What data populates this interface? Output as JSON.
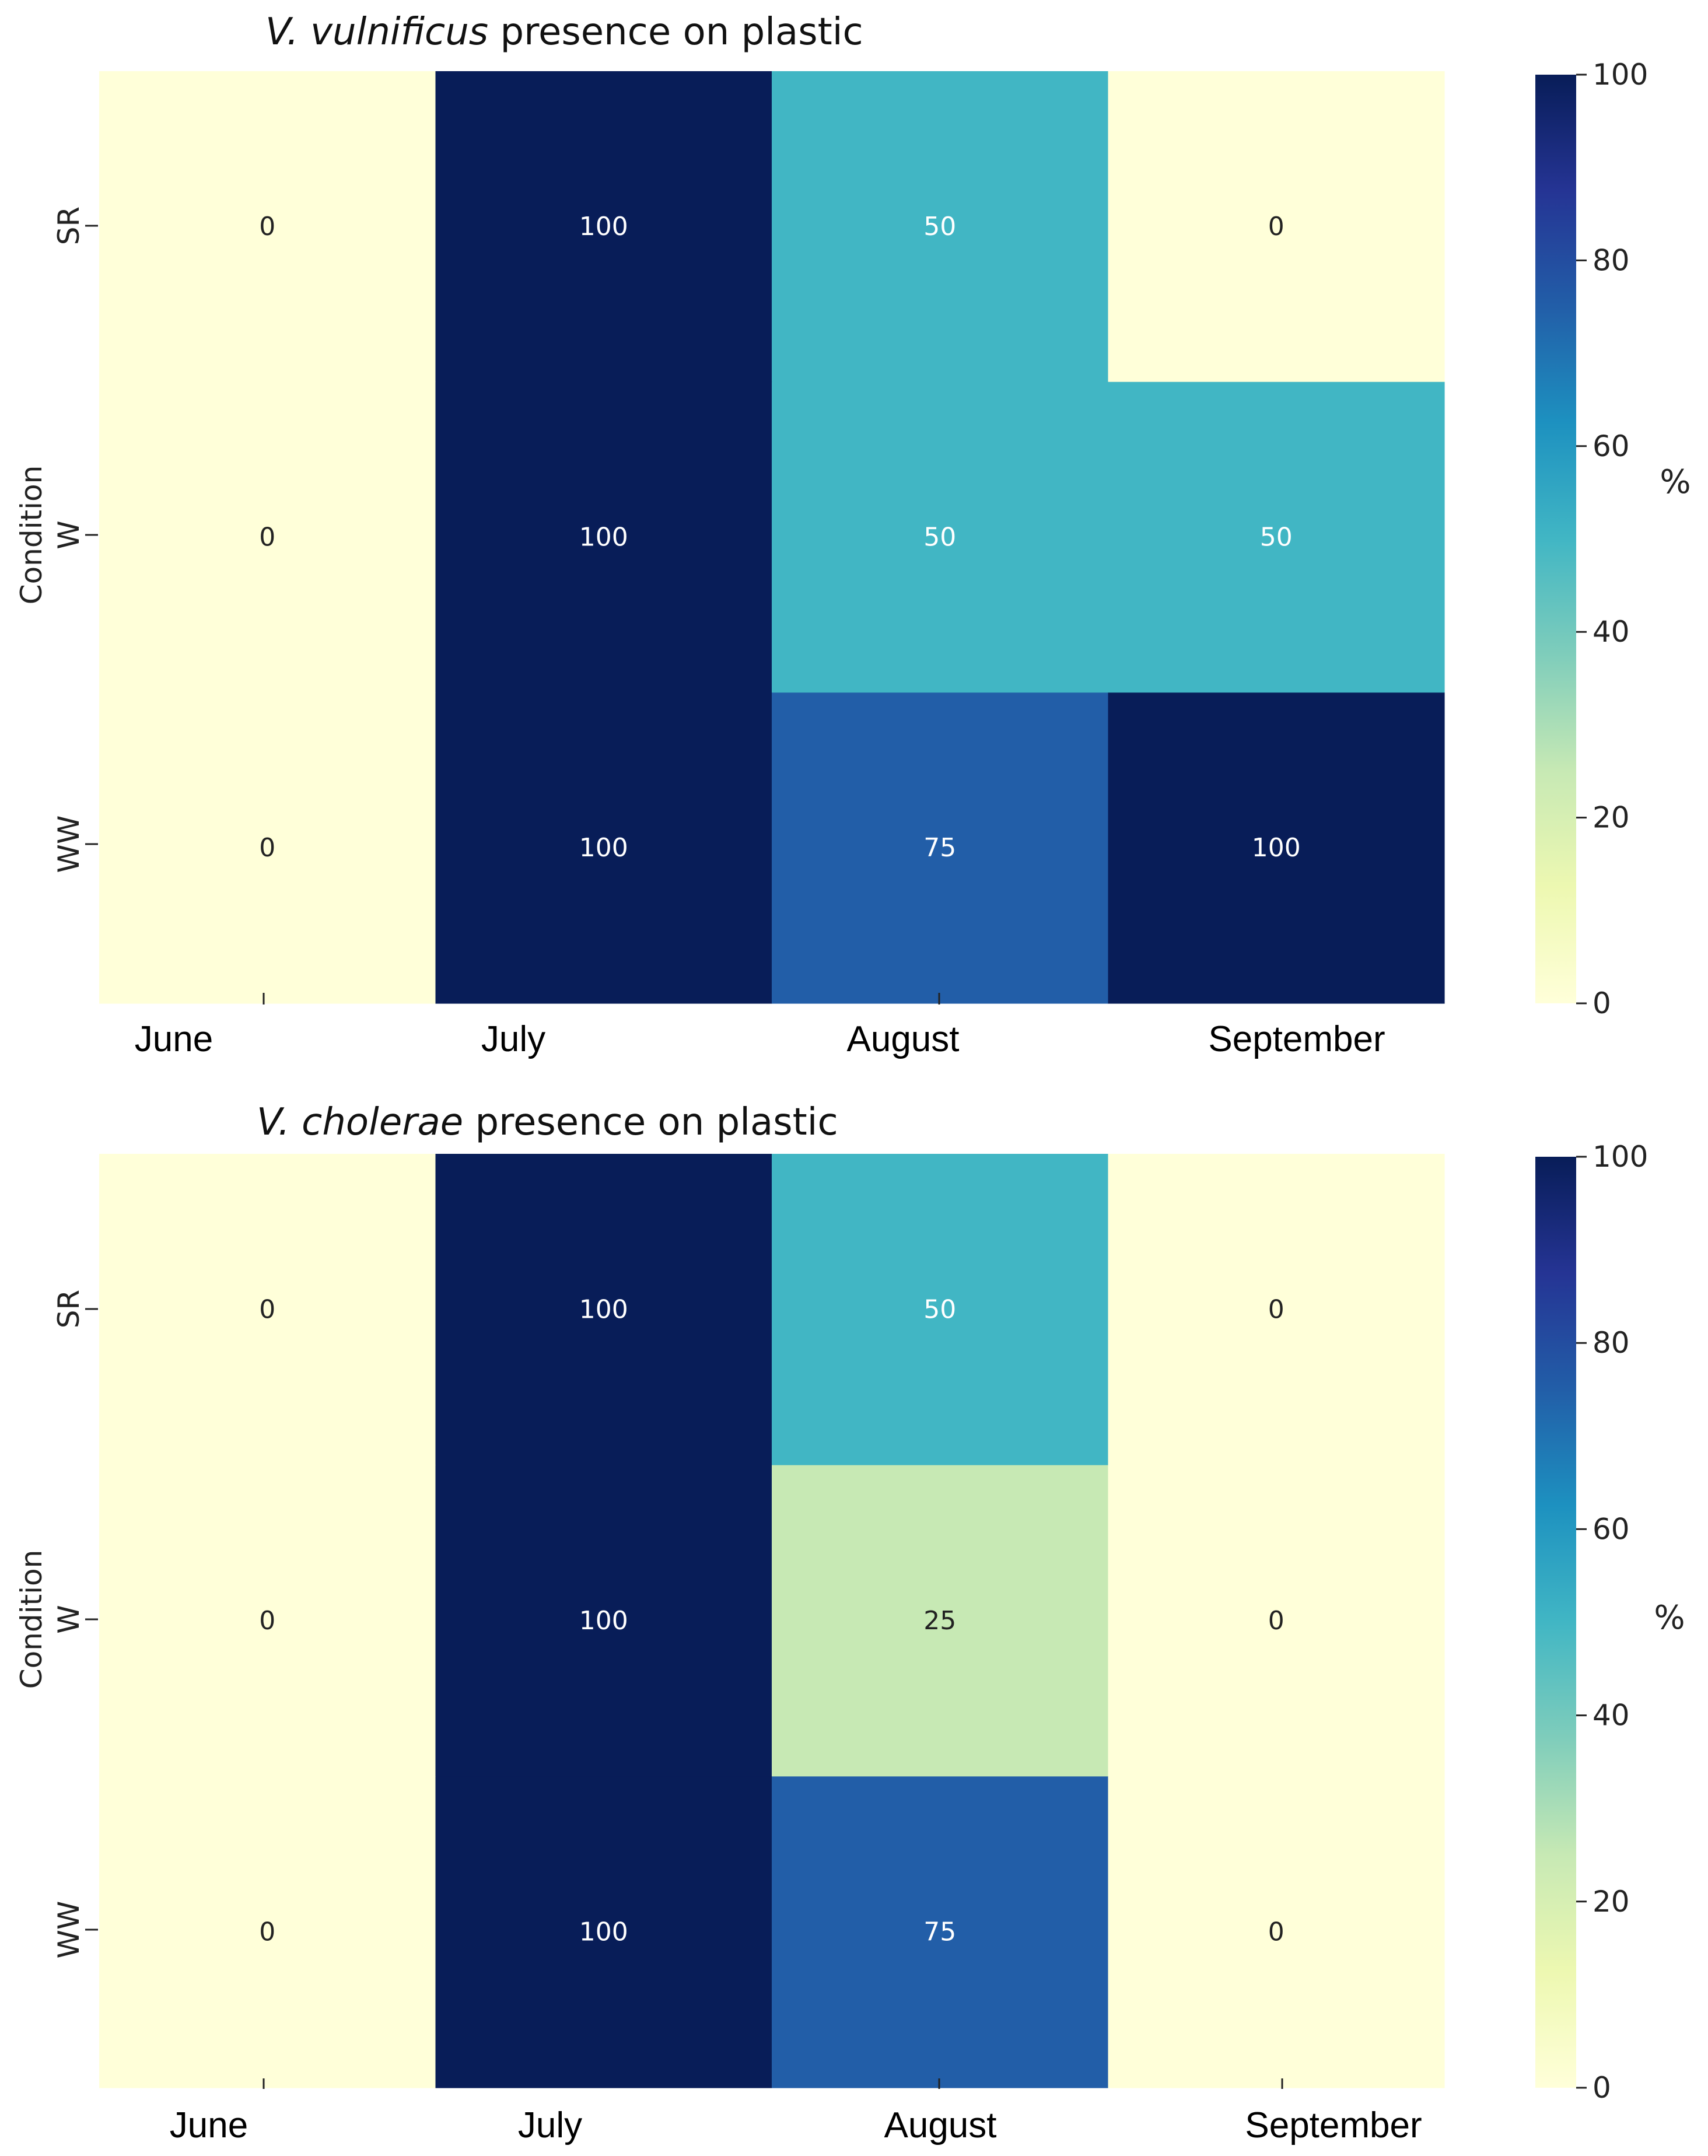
{
  "chart_data": [
    {
      "type": "heatmap",
      "title_italic": "V. vulnificus",
      "title_rest": " presence on plastic",
      "xlabel": "",
      "ylabel": "Condition",
      "columns": [
        "June",
        "July",
        "August",
        "September"
      ],
      "rows": [
        "SR",
        "W",
        "WW"
      ],
      "values": [
        [
          0,
          100,
          50,
          0
        ],
        [
          0,
          100,
          50,
          50
        ],
        [
          0,
          100,
          75,
          100
        ]
      ],
      "colorbar": {
        "label": "%",
        "range": [
          0,
          100
        ],
        "ticks": [
          "0",
          "20",
          "40",
          "60",
          "80",
          "100"
        ]
      },
      "colormap": "YlGnBu"
    },
    {
      "type": "heatmap",
      "title_italic": "V. cholerae",
      "title_rest": " presence on plastic",
      "xlabel": "",
      "ylabel": "Condition",
      "columns": [
        "June",
        "July",
        "August",
        "September"
      ],
      "rows": [
        "SR",
        "W",
        "WW"
      ],
      "values": [
        [
          0,
          100,
          50,
          0
        ],
        [
          0,
          100,
          25,
          0
        ],
        [
          0,
          100,
          75,
          0
        ]
      ],
      "colorbar": {
        "label": "%",
        "range": [
          0,
          100
        ],
        "ticks": [
          "0",
          "20",
          "40",
          "60",
          "80",
          "100"
        ]
      },
      "colormap": "YlGnBu"
    }
  ],
  "colors": {
    "ylgnbu": [
      "#ffffd9",
      "#edf8b1",
      "#c7e9b4",
      "#7fcdbb",
      "#41b6c4",
      "#1d91c0",
      "#225ea8",
      "#253494",
      "#081d58"
    ],
    "annot_light": "#222222",
    "annot_dark": "#ffffff"
  }
}
